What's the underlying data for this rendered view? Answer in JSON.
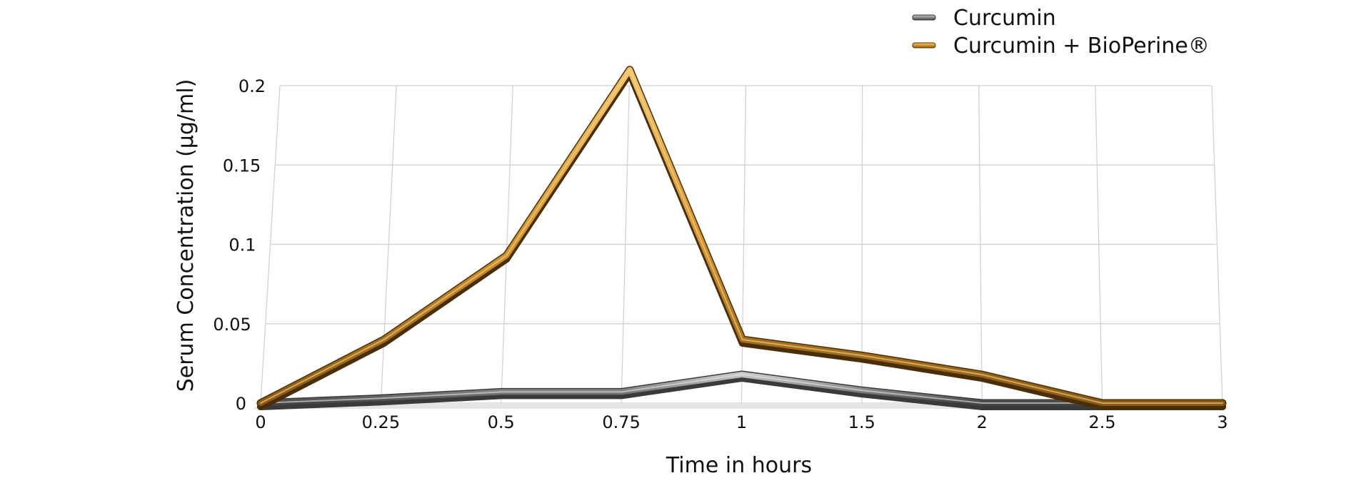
{
  "chart_data": {
    "type": "line",
    "title": "",
    "xlabel": "Time in hours",
    "ylabel": "Serum Concentration (µg/ml)",
    "categories": [
      "0",
      "0.25",
      "0.5",
      "0.75",
      "1",
      "1.5",
      "2",
      "2.5",
      "3"
    ],
    "ylim": [
      0,
      0.2
    ],
    "yticks": [
      "0",
      "0.05",
      "0.1",
      "0.15",
      "0.2"
    ],
    "grid": true,
    "legend_position": "top-right",
    "series": [
      {
        "name": "Curcumin",
        "color": "#6b6b6b",
        "values": [
          0,
          0.003,
          0.007,
          0.007,
          0.018,
          0.008,
          0,
          0,
          0
        ]
      },
      {
        "name": "Curcumin + BioPerine®",
        "color": "#d4962e",
        "values": [
          0,
          0.04,
          0.093,
          0.21,
          0.04,
          0.03,
          0.018,
          0,
          0
        ]
      }
    ]
  }
}
